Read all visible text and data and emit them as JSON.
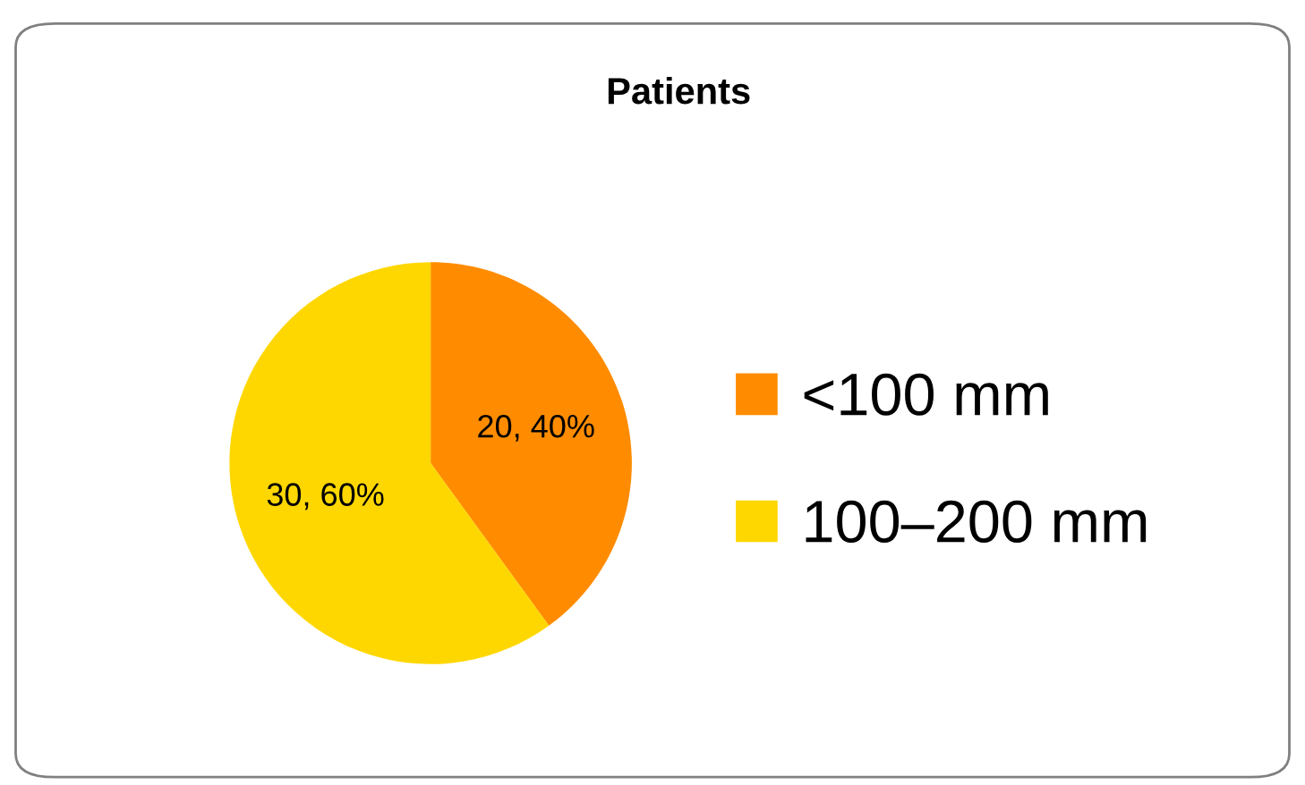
{
  "chart_data": {
    "type": "pie",
    "title": "Patients",
    "categories": [
      "<100 mm",
      "100–200 mm"
    ],
    "values": [
      20,
      30
    ],
    "colors": [
      "#ff8c00",
      "#ffd700"
    ],
    "value_labels": [
      "20, 40%",
      "30, 60%"
    ],
    "legend": "right"
  }
}
